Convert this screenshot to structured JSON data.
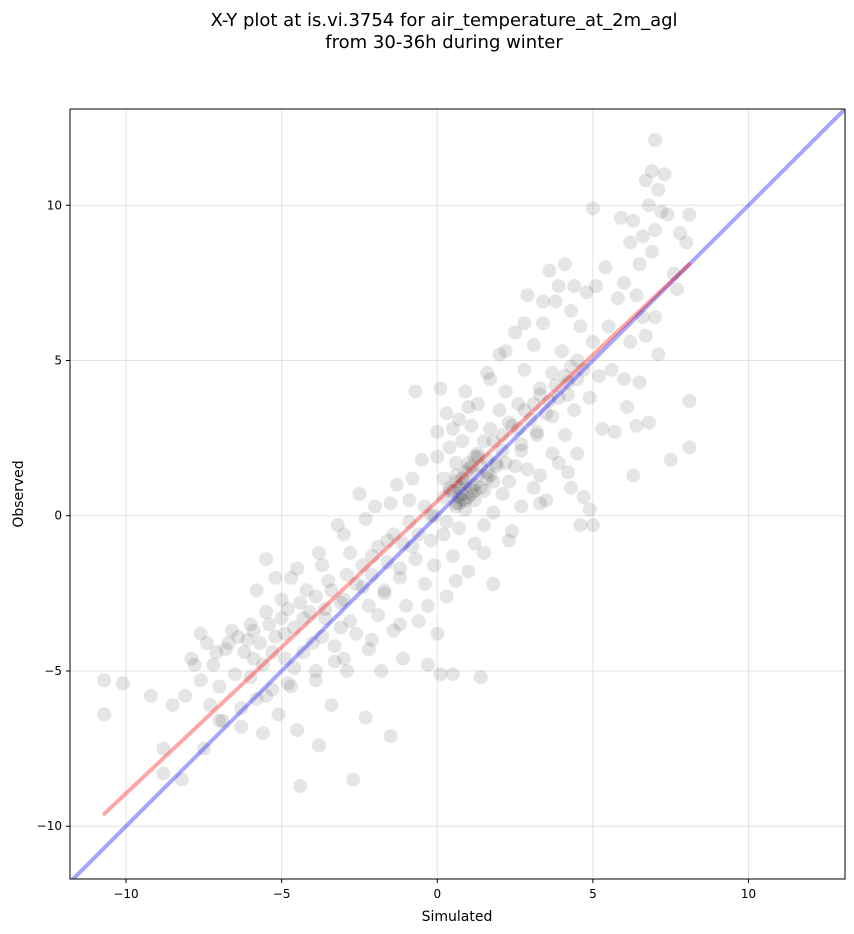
{
  "chart_data": {
    "type": "scatter",
    "title_line1": "X-Y plot at is.vi.3754 for air_temperature_at_2m_agl",
    "title_line2": "from 30-36h during winter",
    "xlabel": "Simulated",
    "ylabel": "Observed",
    "xlim": [
      -11.8,
      13.1
    ],
    "ylim": [
      -11.7,
      13.1
    ],
    "xticks": [
      -10,
      -5,
      0,
      5,
      10
    ],
    "yticks": [
      -10,
      -5,
      0,
      5,
      10
    ],
    "xtick_labels": [
      "−10",
      "−5",
      "0",
      "5",
      "10"
    ],
    "ytick_labels": [
      "−10",
      "−5",
      "0",
      "5",
      "10"
    ],
    "grid": true,
    "point_color": "#000000",
    "point_alpha": 0.1,
    "identity_line": {
      "color": "#0000ff",
      "alpha": 0.35,
      "x": [
        -11.8,
        13.1
      ],
      "y": [
        -11.8,
        13.1
      ]
    },
    "fit_line": {
      "color": "#ff0000",
      "alpha": 0.35,
      "x": [
        -10.7,
        8.1
      ],
      "y": [
        -9.6,
        8.1
      ]
    },
    "points": [
      [
        -10.7,
        -5.3
      ],
      [
        -10.7,
        -6.4
      ],
      [
        -10.1,
        -5.4
      ],
      [
        -9.2,
        -5.8
      ],
      [
        -8.8,
        -7.5
      ],
      [
        -8.8,
        -8.3
      ],
      [
        -8.5,
        -6.1
      ],
      [
        -8.2,
        -8.5
      ],
      [
        -8.1,
        -5.8
      ],
      [
        -7.8,
        -4.8
      ],
      [
        -7.6,
        -5.3
      ],
      [
        -7.6,
        -3.8
      ],
      [
        -7.5,
        -7.5
      ],
      [
        -7.3,
        -6.1
      ],
      [
        -7.2,
        -4.8
      ],
      [
        -7.0,
        -5.5
      ],
      [
        -6.9,
        -6.6
      ],
      [
        -6.8,
        -4.3
      ],
      [
        -6.6,
        -3.7
      ],
      [
        -6.5,
        -5.1
      ],
      [
        -6.3,
        -6.8
      ],
      [
        -6.1,
        -4.0
      ],
      [
        -6.0,
        -3.5
      ],
      [
        -5.9,
        -4.6
      ],
      [
        -5.8,
        -5.9
      ],
      [
        -5.6,
        -7.0
      ],
      [
        -5.5,
        -1.4
      ],
      [
        -5.5,
        -3.1
      ],
      [
        -5.3,
        -4.4
      ],
      [
        -5.1,
        -6.4
      ],
      [
        -5.0,
        -2.7
      ],
      [
        -4.9,
        -3.8
      ],
      [
        -4.8,
        -5.4
      ],
      [
        -4.7,
        -2.0
      ],
      [
        -4.6,
        -4.9
      ],
      [
        -4.5,
        -6.9
      ],
      [
        -4.4,
        -8.7
      ],
      [
        -4.3,
        -3.3
      ],
      [
        -4.2,
        -2.4
      ],
      [
        -4.0,
        -4.1
      ],
      [
        -3.9,
        -5.3
      ],
      [
        -3.8,
        -7.4
      ],
      [
        -3.7,
        -1.6
      ],
      [
        -3.6,
        -3.0
      ],
      [
        -3.5,
        -2.1
      ],
      [
        -3.4,
        -6.1
      ],
      [
        -3.3,
        -4.7
      ],
      [
        -3.2,
        -0.3
      ],
      [
        -3.1,
        -3.6
      ],
      [
        -3.0,
        -2.7
      ],
      [
        -2.9,
        -5.0
      ],
      [
        -2.8,
        -1.2
      ],
      [
        -2.7,
        -8.5
      ],
      [
        -2.6,
        -3.8
      ],
      [
        -2.5,
        0.7
      ],
      [
        -2.4,
        -2.3
      ],
      [
        -2.3,
        -6.5
      ],
      [
        -2.2,
        -4.3
      ],
      [
        -2.1,
        -1.9
      ],
      [
        -2.0,
        0.3
      ],
      [
        -1.9,
        -3.2
      ],
      [
        -1.8,
        -5.0
      ],
      [
        -1.7,
        -2.5
      ],
      [
        -1.6,
        -0.8
      ],
      [
        -1.5,
        -7.1
      ],
      [
        -1.4,
        -3.7
      ],
      [
        -1.3,
        1.0
      ],
      [
        -1.2,
        -1.7
      ],
      [
        -1.1,
        -4.6
      ],
      [
        -1.0,
        -2.9
      ],
      [
        -0.9,
        0.5
      ],
      [
        -0.8,
        -1.0
      ],
      [
        -0.7,
        4.0
      ],
      [
        -0.6,
        -3.4
      ],
      [
        -0.5,
        1.8
      ],
      [
        -0.4,
        -2.2
      ],
      [
        -0.3,
        -4.8
      ],
      [
        -0.2,
        0.0
      ],
      [
        -0.1,
        -1.6
      ],
      [
        0.0,
        2.7
      ],
      [
        0.0,
        -3.8
      ],
      [
        0.1,
        4.1
      ],
      [
        0.1,
        -5.1
      ],
      [
        0.2,
        1.2
      ],
      [
        0.2,
        -0.6
      ],
      [
        0.3,
        -2.6
      ],
      [
        0.3,
        3.3
      ],
      [
        0.4,
        0.8
      ],
      [
        0.4,
        2.2
      ],
      [
        0.5,
        -1.3
      ],
      [
        0.5,
        -5.1
      ],
      [
        0.6,
        0.4
      ],
      [
        0.6,
        1.7
      ],
      [
        0.7,
        3.1
      ],
      [
        0.7,
        0.6
      ],
      [
        0.7,
        -0.4
      ],
      [
        0.8,
        2.4
      ],
      [
        0.8,
        1.0
      ],
      [
        0.9,
        0.2
      ],
      [
        0.9,
        4.0
      ],
      [
        1.0,
        1.5
      ],
      [
        1.0,
        -1.8
      ],
      [
        1.1,
        0.7
      ],
      [
        1.1,
        2.9
      ],
      [
        1.2,
        0.5
      ],
      [
        1.2,
        -0.9
      ],
      [
        1.3,
        1.9
      ],
      [
        1.3,
        3.6
      ],
      [
        1.4,
        0.9
      ],
      [
        1.4,
        -5.2
      ],
      [
        1.5,
        2.4
      ],
      [
        1.5,
        -0.3
      ],
      [
        1.6,
        1.2
      ],
      [
        1.7,
        4.4
      ],
      [
        1.7,
        2.8
      ],
      [
        1.8,
        0.1
      ],
      [
        1.8,
        -2.2
      ],
      [
        1.9,
        1.7
      ],
      [
        2.0,
        3.4
      ],
      [
        2.0,
        5.2
      ],
      [
        2.1,
        0.7
      ],
      [
        2.1,
        2.1
      ],
      [
        2.2,
        4.0
      ],
      [
        2.3,
        1.1
      ],
      [
        2.3,
        -0.8
      ],
      [
        2.4,
        2.9
      ],
      [
        2.5,
        5.9
      ],
      [
        2.5,
        1.6
      ],
      [
        2.6,
        3.6
      ],
      [
        2.7,
        0.3
      ],
      [
        2.7,
        2.3
      ],
      [
        2.8,
        4.7
      ],
      [
        2.9,
        1.5
      ],
      [
        2.9,
        7.1
      ],
      [
        3.0,
        3.1
      ],
      [
        3.1,
        0.9
      ],
      [
        3.1,
        5.5
      ],
      [
        3.2,
        2.6
      ],
      [
        3.3,
        4.1
      ],
      [
        3.3,
        1.3
      ],
      [
        3.4,
        6.2
      ],
      [
        3.5,
        3.3
      ],
      [
        3.5,
        0.5
      ],
      [
        3.6,
        7.9
      ],
      [
        3.7,
        2.0
      ],
      [
        3.7,
        4.6
      ],
      [
        3.8,
        6.9
      ],
      [
        3.9,
        3.8
      ],
      [
        3.9,
        1.7
      ],
      [
        4.0,
        5.3
      ],
      [
        4.1,
        2.6
      ],
      [
        4.1,
        8.1
      ],
      [
        4.2,
        4.3
      ],
      [
        4.3,
        0.9
      ],
      [
        4.3,
        6.6
      ],
      [
        4.4,
        3.4
      ],
      [
        4.4,
        7.4
      ],
      [
        4.5,
        5.0
      ],
      [
        4.5,
        2.0
      ],
      [
        4.6,
        -0.3
      ],
      [
        4.6,
        6.1
      ],
      [
        4.7,
        4.7
      ],
      [
        4.7,
        0.6
      ],
      [
        4.8,
        7.2
      ],
      [
        4.9,
        3.8
      ],
      [
        4.9,
        0.2
      ],
      [
        5.0,
        9.9
      ],
      [
        5.0,
        5.6
      ],
      [
        5.0,
        -0.3
      ],
      [
        5.1,
        7.4
      ],
      [
        5.2,
        4.5
      ],
      [
        5.3,
        2.8
      ],
      [
        5.4,
        8.0
      ],
      [
        5.5,
        6.1
      ],
      [
        5.6,
        4.7
      ],
      [
        5.7,
        2.7
      ],
      [
        5.8,
        7.0
      ],
      [
        5.9,
        9.6
      ],
      [
        6.0,
        4.4
      ],
      [
        6.0,
        7.5
      ],
      [
        6.1,
        3.5
      ],
      [
        6.2,
        8.8
      ],
      [
        6.2,
        5.6
      ],
      [
        6.3,
        1.3
      ],
      [
        6.3,
        9.5
      ],
      [
        6.4,
        7.1
      ],
      [
        6.4,
        2.9
      ],
      [
        6.5,
        8.1
      ],
      [
        6.5,
        4.3
      ],
      [
        6.6,
        6.4
      ],
      [
        6.6,
        9.0
      ],
      [
        6.7,
        10.8
      ],
      [
        6.7,
        5.8
      ],
      [
        6.8,
        3.0
      ],
      [
        6.8,
        10.0
      ],
      [
        6.9,
        8.5
      ],
      [
        6.9,
        11.1
      ],
      [
        7.0,
        12.1
      ],
      [
        7.0,
        9.2
      ],
      [
        7.0,
        6.4
      ],
      [
        7.1,
        5.2
      ],
      [
        7.1,
        10.5
      ],
      [
        7.2,
        9.8
      ],
      [
        7.3,
        11.0
      ],
      [
        7.4,
        9.7
      ],
      [
        7.5,
        1.8
      ],
      [
        7.6,
        7.8
      ],
      [
        7.7,
        7.3
      ],
      [
        7.8,
        9.1
      ],
      [
        8.0,
        8.8
      ],
      [
        8.1,
        9.7
      ],
      [
        8.1,
        3.7
      ],
      [
        8.1,
        2.2
      ],
      [
        -7.9,
        -4.6
      ],
      [
        -7.4,
        -4.1
      ],
      [
        -7.1,
        -4.4
      ],
      [
        -6.7,
        -4.1
      ],
      [
        -6.4,
        -3.9
      ],
      [
        -6.2,
        -4.4
      ],
      [
        -5.9,
        -3.7
      ],
      [
        -5.7,
        -4.1
      ],
      [
        -5.4,
        -3.5
      ],
      [
        -5.2,
        -3.9
      ],
      [
        -5.0,
        -3.3
      ],
      [
        -4.8,
        -3.0
      ],
      [
        -4.6,
        -3.6
      ],
      [
        -4.4,
        -2.8
      ],
      [
        -4.1,
        -3.1
      ],
      [
        -3.9,
        -2.6
      ],
      [
        -3.6,
        -3.3
      ],
      [
        -3.4,
        -2.4
      ],
      [
        -3.1,
        -2.8
      ],
      [
        -2.9,
        -1.9
      ],
      [
        -2.6,
        -2.2
      ],
      [
        -2.4,
        -1.6
      ],
      [
        -2.1,
        -1.3
      ],
      [
        -1.9,
        -1.0
      ],
      [
        -1.6,
        -1.5
      ],
      [
        -1.4,
        -0.6
      ],
      [
        -1.1,
        -0.9
      ],
      [
        -0.9,
        -0.2
      ],
      [
        -0.6,
        -0.6
      ],
      [
        -0.4,
        0.3
      ],
      [
        -0.1,
        0.0
      ],
      [
        0.2,
        0.6
      ],
      [
        0.4,
        0.9
      ],
      [
        0.6,
        1.3
      ],
      [
        0.9,
        1.1
      ],
      [
        1.1,
        1.6
      ],
      [
        1.3,
        2.0
      ],
      [
        1.6,
        1.8
      ],
      [
        1.8,
        2.4
      ],
      [
        2.1,
        2.6
      ],
      [
        2.3,
        3.0
      ],
      [
        2.6,
        2.8
      ],
      [
        2.8,
        3.4
      ],
      [
        3.1,
        3.6
      ],
      [
        3.3,
        3.9
      ],
      [
        3.6,
        3.7
      ],
      [
        3.8,
        4.2
      ],
      [
        4.1,
        4.5
      ],
      [
        4.3,
        4.8
      ],
      [
        4.5,
        4.4
      ],
      [
        -6.0,
        -5.2
      ],
      [
        -5.6,
        -4.8
      ],
      [
        -5.3,
        -5.6
      ],
      [
        -4.9,
        -4.6
      ],
      [
        -4.3,
        -4.4
      ],
      [
        -3.7,
        -3.9
      ],
      [
        -3.3,
        -4.2
      ],
      [
        -2.8,
        -3.4
      ],
      [
        -2.2,
        -2.9
      ],
      [
        -1.7,
        -2.4
      ],
      [
        -1.2,
        -2.0
      ],
      [
        -0.7,
        -1.4
      ],
      [
        -0.2,
        -0.8
      ],
      [
        0.3,
        -0.2
      ],
      [
        0.8,
        0.5
      ],
      [
        1.2,
        0.8
      ],
      [
        1.7,
        1.3
      ],
      [
        2.2,
        1.7
      ],
      [
        2.7,
        2.1
      ],
      [
        3.2,
        2.7
      ],
      [
        3.7,
        3.2
      ],
      [
        4.2,
        3.9
      ],
      [
        -5.8,
        -2.4
      ],
      [
        -5.2,
        -2.0
      ],
      [
        -4.5,
        -1.7
      ],
      [
        -3.8,
        -1.2
      ],
      [
        -3.0,
        -0.6
      ],
      [
        -2.3,
        -0.1
      ],
      [
        -1.5,
        0.4
      ],
      [
        -0.8,
        1.2
      ],
      [
        0.0,
        1.9
      ],
      [
        0.5,
        2.8
      ],
      [
        1.0,
        3.5
      ],
      [
        1.6,
        4.6
      ],
      [
        2.2,
        5.3
      ],
      [
        2.8,
        6.2
      ],
      [
        3.4,
        6.9
      ],
      [
        3.9,
        7.4
      ],
      [
        -7.0,
        -6.6
      ],
      [
        -6.3,
        -6.2
      ],
      [
        -5.5,
        -5.8
      ],
      [
        -4.7,
        -5.5
      ],
      [
        -3.9,
        -5.0
      ],
      [
        -3.0,
        -4.6
      ],
      [
        -2.1,
        -4.0
      ],
      [
        -1.2,
        -3.5
      ],
      [
        -0.3,
        -2.9
      ],
      [
        0.6,
        -2.1
      ],
      [
        1.5,
        -1.2
      ],
      [
        2.4,
        -0.5
      ],
      [
        3.3,
        0.4
      ],
      [
        4.2,
        1.4
      ],
      [
        0.6,
        0.3
      ],
      [
        0.8,
        0.7
      ],
      [
        0.7,
        0.9
      ],
      [
        0.9,
        0.5
      ],
      [
        1.0,
        0.6
      ],
      [
        0.5,
        0.8
      ],
      [
        0.8,
        1.2
      ],
      [
        1.1,
        0.9
      ],
      [
        0.9,
        1.4
      ],
      [
        1.2,
        1.0
      ],
      [
        0.6,
        1.1
      ],
      [
        1.3,
        1.3
      ],
      [
        1.0,
        1.7
      ],
      [
        1.4,
        1.6
      ],
      [
        0.7,
        0.4
      ],
      [
        1.5,
        0.8
      ],
      [
        1.6,
        1.4
      ],
      [
        1.2,
        1.9
      ],
      [
        1.8,
        1.1
      ],
      [
        1.9,
        1.6
      ]
    ]
  }
}
